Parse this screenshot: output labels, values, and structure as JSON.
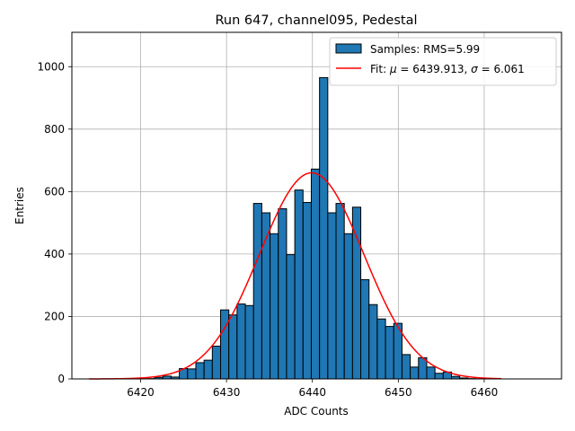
{
  "chart_data": {
    "type": "bar",
    "title": "Run 647, channel095, Pedestal",
    "xlabel": "ADC Counts",
    "ylabel": "Entries",
    "xlim": [
      6412,
      6469
    ],
    "ylim": [
      0,
      1110
    ],
    "grid": true,
    "legend_position": "top-right",
    "x_ticks": [
      6420,
      6430,
      6440,
      6450,
      6460
    ],
    "y_ticks": [
      0,
      200,
      400,
      600,
      800,
      1000
    ],
    "series": [
      {
        "name": "Samples: RMS=5.99",
        "kind": "histogram",
        "color": "#1f77b4",
        "edge_color": "#000000",
        "bins": [
          {
            "x0": 6420.67,
            "x1": 6421.63,
            "value": 1
          },
          {
            "x0": 6421.63,
            "x1": 6422.59,
            "value": 5
          },
          {
            "x0": 6422.59,
            "x1": 6423.55,
            "value": 9
          },
          {
            "x0": 6423.55,
            "x1": 6424.51,
            "value": 6
          },
          {
            "x0": 6424.51,
            "x1": 6425.47,
            "value": 33
          },
          {
            "x0": 6425.47,
            "x1": 6426.43,
            "value": 32
          },
          {
            "x0": 6426.43,
            "x1": 6427.39,
            "value": 52
          },
          {
            "x0": 6427.39,
            "x1": 6428.35,
            "value": 60
          },
          {
            "x0": 6428.35,
            "x1": 6429.31,
            "value": 105
          },
          {
            "x0": 6429.31,
            "x1": 6430.27,
            "value": 221
          },
          {
            "x0": 6430.27,
            "x1": 6431.23,
            "value": 205
          },
          {
            "x0": 6431.23,
            "x1": 6432.19,
            "value": 240
          },
          {
            "x0": 6432.19,
            "x1": 6433.15,
            "value": 235
          },
          {
            "x0": 6433.15,
            "x1": 6434.11,
            "value": 562
          },
          {
            "x0": 6434.11,
            "x1": 6435.07,
            "value": 532
          },
          {
            "x0": 6435.07,
            "x1": 6436.03,
            "value": 465
          },
          {
            "x0": 6436.03,
            "x1": 6436.99,
            "value": 545
          },
          {
            "x0": 6436.99,
            "x1": 6437.95,
            "value": 398
          },
          {
            "x0": 6437.95,
            "x1": 6438.91,
            "value": 605
          },
          {
            "x0": 6438.91,
            "x1": 6439.87,
            "value": 565
          },
          {
            "x0": 6439.87,
            "x1": 6440.83,
            "value": 672
          },
          {
            "x0": 6440.83,
            "x1": 6441.79,
            "value": 965
          },
          {
            "x0": 6441.79,
            "x1": 6442.75,
            "value": 532
          },
          {
            "x0": 6442.75,
            "x1": 6443.71,
            "value": 562
          },
          {
            "x0": 6443.71,
            "x1": 6444.67,
            "value": 465
          },
          {
            "x0": 6444.67,
            "x1": 6445.63,
            "value": 550
          },
          {
            "x0": 6445.63,
            "x1": 6446.59,
            "value": 318
          },
          {
            "x0": 6446.59,
            "x1": 6447.55,
            "value": 238
          },
          {
            "x0": 6447.55,
            "x1": 6448.51,
            "value": 192
          },
          {
            "x0": 6448.51,
            "x1": 6449.47,
            "value": 168
          },
          {
            "x0": 6449.47,
            "x1": 6450.43,
            "value": 178
          },
          {
            "x0": 6450.43,
            "x1": 6451.39,
            "value": 78
          },
          {
            "x0": 6451.39,
            "x1": 6452.35,
            "value": 38
          },
          {
            "x0": 6452.35,
            "x1": 6453.31,
            "value": 68
          },
          {
            "x0": 6453.31,
            "x1": 6454.27,
            "value": 38
          },
          {
            "x0": 6454.27,
            "x1": 6455.23,
            "value": 18
          },
          {
            "x0": 6455.23,
            "x1": 6456.19,
            "value": 22
          },
          {
            "x0": 6456.19,
            "x1": 6457.15,
            "value": 8
          },
          {
            "x0": 6457.15,
            "x1": 6458.11,
            "value": 3
          },
          {
            "x0": 6458.11,
            "x1": 6459.07,
            "value": 1
          }
        ]
      },
      {
        "name": "Fit: μ = 6439.913, σ = 6.061",
        "kind": "line",
        "color": "#ff0000",
        "x_range": [
          6414,
          6462
        ],
        "function": "gaussian",
        "amplitude": 660,
        "mu": 6439.913,
        "sigma": 6.061
      }
    ],
    "legend": [
      {
        "label_prefix": "Samples: RMS=5.99",
        "symbol": "patch"
      },
      {
        "label_parts": [
          "Fit: ",
          "μ",
          " = 6439.913, ",
          "σ",
          " = 6.061"
        ],
        "symbol": "line"
      }
    ]
  }
}
